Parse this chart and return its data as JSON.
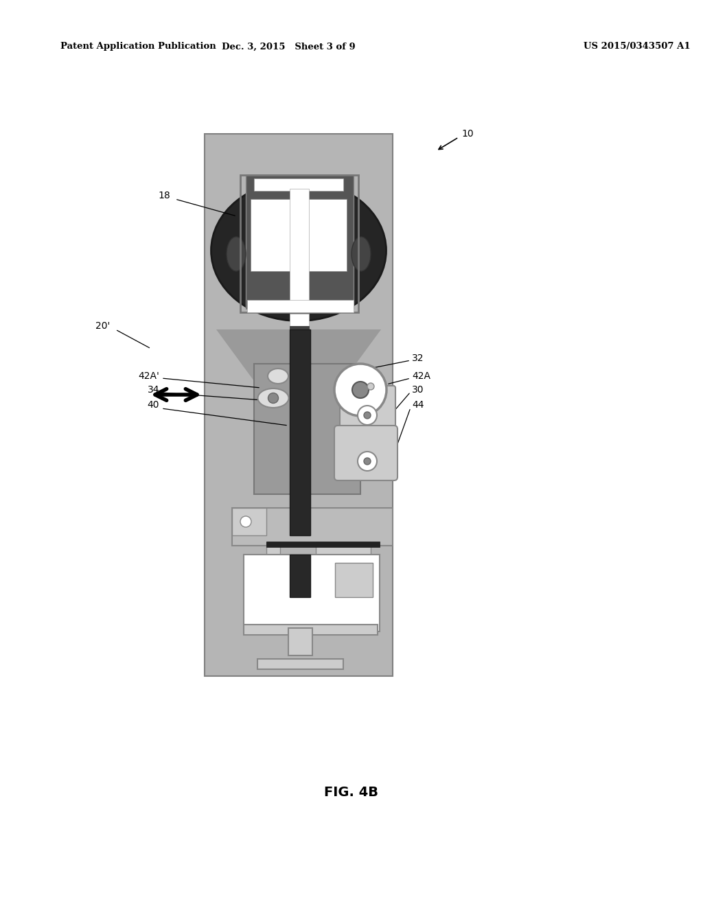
{
  "background_color": "#ffffff",
  "header_left": "Patent Application Publication",
  "header_center": "Dec. 3, 2015   Sheet 3 of 9",
  "header_right": "US 2015/0343507 A1",
  "figure_label": "FIG. 4B",
  "gray_bg": "#b8b8b8",
  "dark_color": "#2a2a2a",
  "mid_gray": "#6a6a6a",
  "light_gray": "#cccccc",
  "white": "#ffffff",
  "stem_dark": "#303030"
}
